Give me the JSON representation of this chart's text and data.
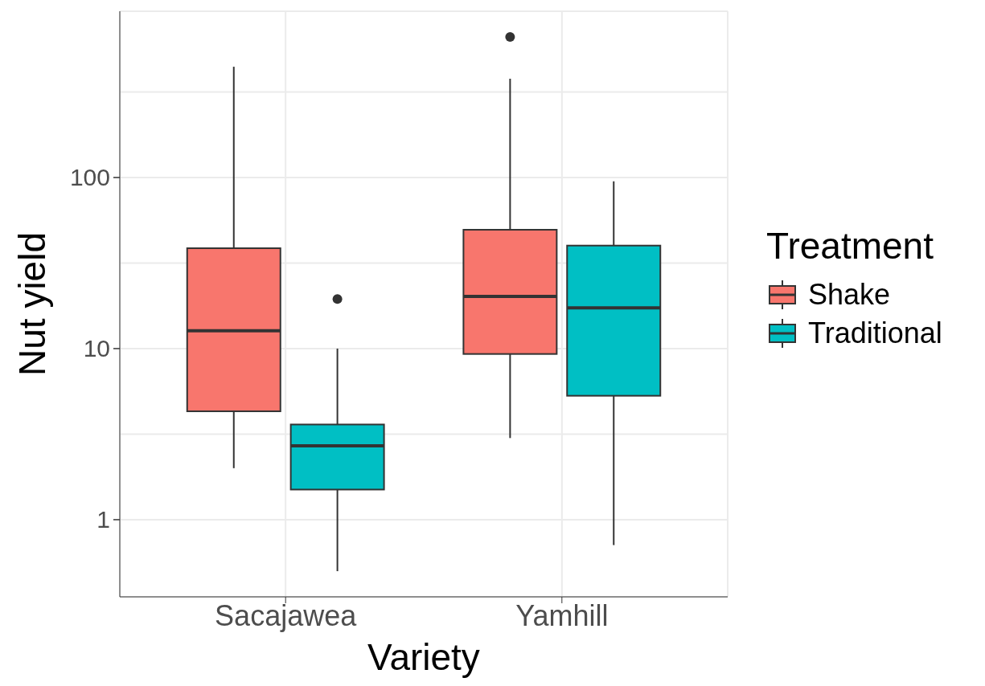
{
  "chart_data": {
    "type": "box",
    "xlabel": "Variety",
    "ylabel": "Nut yield",
    "legend_title": "Treatment",
    "categories": [
      "Sacajawea",
      "Yamhill"
    ],
    "series": [
      {
        "name": "Shake",
        "color": "#f8766d",
        "boxes": [
          {
            "low": 2.0,
            "q1": 4.3,
            "median": 12.7,
            "q3": 38.6,
            "high": 444
          },
          {
            "low": 3.0,
            "q1": 9.3,
            "median": 20.2,
            "q3": 49.5,
            "high": 378,
            "outliers": [
              663
            ]
          }
        ]
      },
      {
        "name": "Traditional",
        "color": "#00bfc4",
        "boxes": [
          {
            "low": 0.5,
            "q1": 1.5,
            "median": 2.7,
            "q3": 3.6,
            "high": 10,
            "outliers": [
              19.5
            ]
          },
          {
            "low": 0.71,
            "q1": 5.3,
            "median": 17.3,
            "q3": 40,
            "high": 95
          }
        ]
      }
    ],
    "log": "y",
    "ylim": [
      0.354,
      937
    ],
    "yticks": [
      1,
      {
        "value": 3.16,
        "label": null
      },
      10,
      {
        "value": 31.6,
        "label": null
      },
      100,
      {
        "value": 316,
        "label": null
      }
    ],
    "grid": true,
    "legend": "right"
  }
}
